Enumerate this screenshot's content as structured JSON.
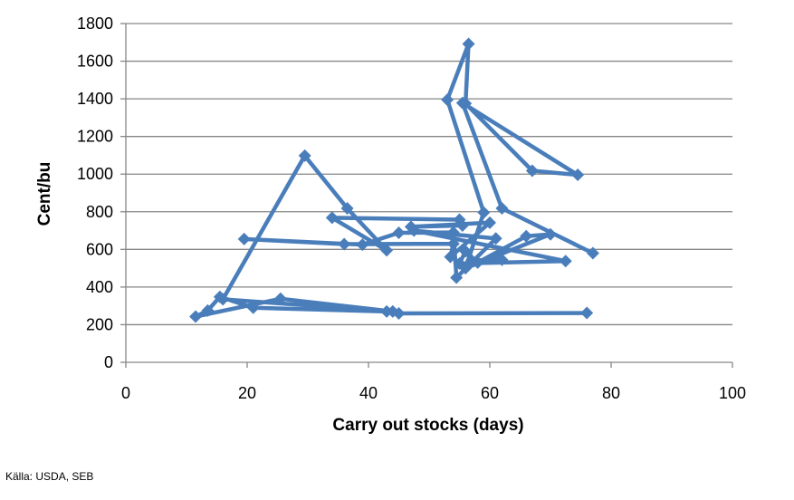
{
  "source": "Källa: USDA, SEB",
  "chart_data": {
    "type": "line",
    "title": "",
    "xlabel": "Carry out stocks  (days)",
    "ylabel": "Cent/bu",
    "xlim": [
      0,
      100
    ],
    "ylim": [
      0,
      1800
    ],
    "xticks": [
      0,
      20,
      40,
      60,
      80,
      100
    ],
    "yticks": [
      0,
      200,
      400,
      600,
      800,
      1000,
      1200,
      1400,
      1600,
      1800
    ],
    "grid": "horizontal",
    "legend": "none",
    "colors": {
      "series": "#4a7ebb",
      "grid": "#868686",
      "axis": "#868686"
    },
    "series": [
      {
        "marker": "diamond",
        "points": [
          [
            76,
            262
          ],
          [
            45,
            260
          ],
          [
            43,
            270
          ],
          [
            21,
            290
          ],
          [
            15.5,
            348
          ],
          [
            13.5,
            275
          ],
          [
            11.5,
            243
          ],
          [
            25.5,
            338
          ],
          [
            44,
            270
          ],
          [
            16,
            335
          ],
          [
            29.5,
            1098
          ],
          [
            36.5,
            818
          ],
          [
            43,
            595
          ],
          [
            34,
            768
          ],
          [
            55,
            758
          ],
          [
            55.5,
            727
          ],
          [
            47,
            720
          ],
          [
            60,
            742
          ],
          [
            53.5,
            560
          ],
          [
            54,
            630
          ],
          [
            36,
            628
          ],
          [
            19.5,
            655
          ],
          [
            39,
            625
          ],
          [
            45,
            688
          ],
          [
            54,
            690
          ],
          [
            54.5,
            450
          ],
          [
            61,
            658
          ],
          [
            47.5,
            700
          ],
          [
            72.5,
            538
          ],
          [
            55,
            525
          ],
          [
            56,
            590
          ],
          [
            57,
            542
          ],
          [
            62,
            545
          ],
          [
            58,
            530
          ],
          [
            66,
            670
          ],
          [
            70,
            680
          ],
          [
            56,
            500
          ],
          [
            59,
            796
          ],
          [
            53,
            1395
          ],
          [
            56.5,
            1692
          ],
          [
            56,
            1375
          ],
          [
            67,
            1018
          ],
          [
            74.5,
            996
          ],
          [
            55.5,
            1378
          ],
          [
            62,
            818
          ],
          [
            77,
            580
          ]
        ]
      }
    ]
  }
}
